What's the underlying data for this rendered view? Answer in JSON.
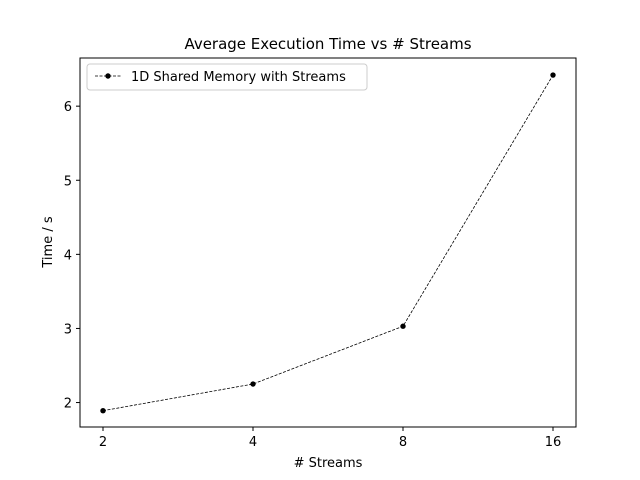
{
  "chart_data": {
    "type": "line",
    "title": "Average Execution Time vs # Streams",
    "xlabel": "# Streams",
    "ylabel": "Time / s",
    "categories": [
      "2",
      "4",
      "8",
      "16"
    ],
    "series": [
      {
        "name": "1D Shared Memory with Streams",
        "values": [
          1.89,
          2.25,
          3.03,
          6.42
        ],
        "color": "#000000",
        "line_style": "dashed",
        "marker": "circle"
      }
    ],
    "yticks": [
      2,
      3,
      4,
      5,
      6
    ],
    "ylim": [
      1.67,
      6.65
    ],
    "grid": false,
    "legend_position": "top-left"
  }
}
